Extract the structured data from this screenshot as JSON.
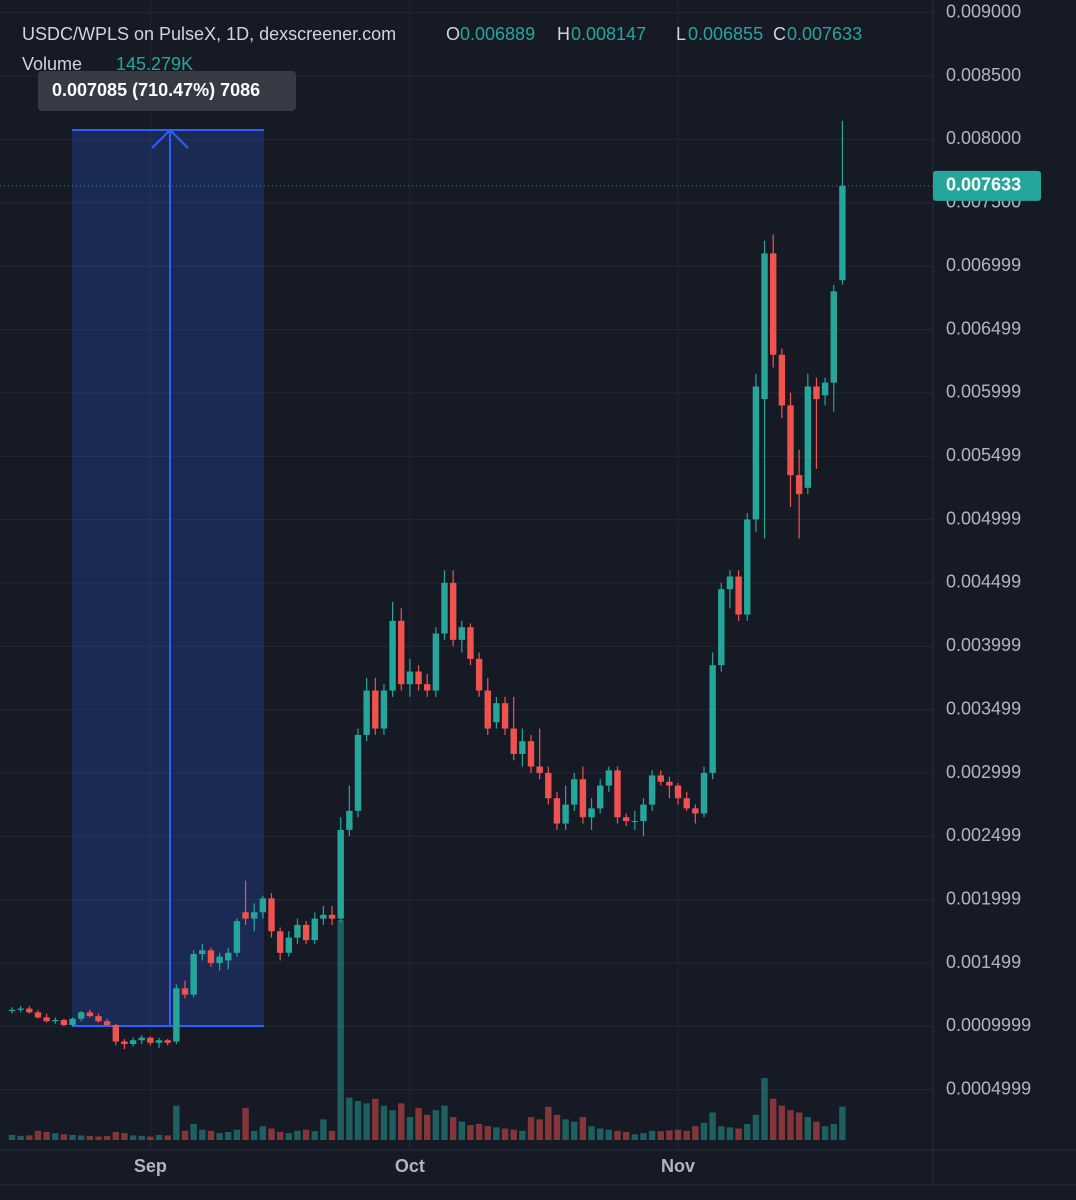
{
  "chart_data": {
    "type": "candlestick",
    "title": "USDC/WPLS on PulseX, 1D, dexscreener.com",
    "ohlc_labels": [
      "O",
      "H",
      "L",
      "C"
    ],
    "volume_label": "Volume",
    "volume_value_label": "145.279K",
    "measure_label": "0.007085 (710.47%) 7086",
    "categories": [
      null,
      null,
      null,
      null,
      null,
      null,
      null,
      null,
      null,
      null,
      null,
      null,
      null,
      null,
      null,
      null,
      "Sep",
      null,
      null,
      null,
      null,
      null,
      null,
      null,
      null,
      null,
      null,
      null,
      null,
      null,
      null,
      null,
      null,
      null,
      null,
      null,
      null,
      null,
      null,
      null,
      null,
      null,
      null,
      null,
      null,
      null,
      "Oct",
      null,
      null,
      null,
      null,
      null,
      null,
      null,
      null,
      null,
      null,
      null,
      null,
      null,
      null,
      null,
      null,
      null,
      null,
      null,
      null,
      null,
      null,
      null,
      null,
      null,
      null,
      null,
      null,
      null,
      null,
      "Nov",
      null,
      null,
      null,
      null,
      null,
      null,
      null,
      null,
      null,
      null,
      null,
      null,
      null,
      null,
      null,
      null,
      null,
      null,
      null
    ],
    "open": [
      0.00112,
      0.00113,
      0.00114,
      0.00111,
      0.00107,
      0.00104,
      0.00105,
      0.00101,
      0.00106,
      0.00111,
      0.00108,
      0.00104,
      0.00101,
      0.00088,
      0.00086,
      0.00089,
      0.00091,
      0.00087,
      0.00089,
      0.00088,
      0.0013,
      0.00125,
      0.00157,
      0.0016,
      0.0015,
      0.00152,
      0.00158,
      0.0019,
      0.00185,
      0.0019,
      0.00201,
      0.00175,
      0.00158,
      0.0017,
      0.0018,
      0.00168,
      0.00185,
      0.00188,
      0.00185,
      0.00255,
      0.0027,
      0.0033,
      0.00365,
      0.00335,
      0.00365,
      0.0042,
      0.0037,
      0.0038,
      0.0037,
      0.00365,
      0.0041,
      0.0045,
      0.00405,
      0.00415,
      0.0039,
      0.00365,
      0.0034,
      0.00355,
      0.00335,
      0.00315,
      0.00325,
      0.00305,
      0.003,
      0.0028,
      0.0026,
      0.00275,
      0.00295,
      0.00265,
      0.00272,
      0.0029,
      0.00302,
      0.00265,
      0.00262,
      0.00262,
      0.00275,
      0.00298,
      0.00293,
      0.0029,
      0.0028,
      0.00272,
      0.00268,
      0.003,
      0.00385,
      0.00445,
      0.00455,
      0.00425,
      0.005,
      0.00595,
      0.0071,
      0.0063,
      0.0059,
      0.00535,
      0.00525,
      0.00605,
      0.00598,
      0.00608,
      0.006889
    ],
    "high": [
      0.00115,
      0.00116,
      0.00116,
      0.00113,
      0.0011,
      0.00107,
      0.00106,
      0.00107,
      0.00112,
      0.00113,
      0.0011,
      0.00106,
      0.00102,
      0.0009,
      0.00091,
      0.00093,
      0.00092,
      0.00091,
      0.0009,
      0.00133,
      0.00136,
      0.0016,
      0.00165,
      0.00162,
      0.00158,
      0.00162,
      0.00185,
      0.00215,
      0.00197,
      0.00203,
      0.00205,
      0.00178,
      0.00175,
      0.00185,
      0.00183,
      0.0019,
      0.00195,
      0.00195,
      0.00265,
      0.0029,
      0.00335,
      0.00375,
      0.00375,
      0.0037,
      0.00435,
      0.0043,
      0.0039,
      0.00385,
      0.00378,
      0.00415,
      0.0046,
      0.0046,
      0.0042,
      0.00418,
      0.00395,
      0.00375,
      0.0036,
      0.0036,
      0.0036,
      0.00335,
      0.0033,
      0.00335,
      0.00305,
      0.00285,
      0.0029,
      0.003,
      0.00305,
      0.0028,
      0.00295,
      0.00305,
      0.00305,
      0.00268,
      0.0027,
      0.0028,
      0.00302,
      0.00302,
      0.00297,
      0.00292,
      0.00285,
      0.00275,
      0.00305,
      0.00395,
      0.0045,
      0.0046,
      0.0046,
      0.00505,
      0.00615,
      0.0072,
      0.00725,
      0.00635,
      0.006,
      0.00555,
      0.00615,
      0.00612,
      0.00612,
      0.00685,
      0.008147
    ],
    "low": [
      0.0011,
      0.00111,
      0.0011,
      0.00106,
      0.00103,
      0.00102,
      0.001,
      0.001,
      0.00104,
      0.00107,
      0.00103,
      0.001,
      0.00085,
      0.00082,
      0.00084,
      0.00086,
      0.00085,
      0.00083,
      0.00085,
      0.00086,
      0.00122,
      0.00123,
      0.00152,
      0.00147,
      0.00144,
      0.00145,
      0.00155,
      0.0018,
      0.00175,
      0.00185,
      0.0017,
      0.00152,
      0.00155,
      0.00165,
      0.00165,
      0.00165,
      0.0018,
      0.0018,
      0.00182,
      0.0025,
      0.00265,
      0.00325,
      0.0033,
      0.0033,
      0.0036,
      0.00365,
      0.0036,
      0.00365,
      0.0036,
      0.0036,
      0.00405,
      0.004,
      0.00395,
      0.00385,
      0.0036,
      0.0033,
      0.00335,
      0.0033,
      0.0031,
      0.00305,
      0.003,
      0.00295,
      0.00275,
      0.00255,
      0.00255,
      0.0027,
      0.0026,
      0.00255,
      0.00268,
      0.00285,
      0.0026,
      0.00258,
      0.00255,
      0.0025,
      0.0027,
      0.0029,
      0.0028,
      0.00275,
      0.0027,
      0.0026,
      0.00265,
      0.00295,
      0.0038,
      0.0043,
      0.0042,
      0.0042,
      0.0049,
      0.00485,
      0.0062,
      0.0058,
      0.0051,
      0.00485,
      0.0052,
      0.0054,
      0.0059,
      0.00585,
      0.006855
    ],
    "close": [
      0.00113,
      0.00114,
      0.00111,
      0.00107,
      0.00104,
      0.00105,
      0.00101,
      0.00106,
      0.00111,
      0.00108,
      0.00104,
      0.00101,
      0.00088,
      0.00086,
      0.00089,
      0.00091,
      0.00087,
      0.00089,
      0.00087,
      0.0013,
      0.00125,
      0.00157,
      0.0016,
      0.0015,
      0.00155,
      0.00158,
      0.00183,
      0.00185,
      0.0019,
      0.00201,
      0.00175,
      0.00158,
      0.0017,
      0.0018,
      0.00168,
      0.00185,
      0.00188,
      0.00185,
      0.00255,
      0.0027,
      0.0033,
      0.00365,
      0.00335,
      0.00365,
      0.0042,
      0.0037,
      0.0038,
      0.0037,
      0.00365,
      0.0041,
      0.0045,
      0.00405,
      0.00415,
      0.0039,
      0.00365,
      0.00335,
      0.00355,
      0.00335,
      0.00315,
      0.00325,
      0.00305,
      0.003,
      0.0028,
      0.0026,
      0.00275,
      0.00295,
      0.00265,
      0.00272,
      0.0029,
      0.00302,
      0.00265,
      0.00262,
      0.00262,
      0.00275,
      0.00298,
      0.00293,
      0.0029,
      0.0028,
      0.00272,
      0.00268,
      0.003,
      0.00385,
      0.00445,
      0.00455,
      0.00425,
      0.005,
      0.00605,
      0.0071,
      0.0063,
      0.0059,
      0.00535,
      0.0052,
      0.00605,
      0.00595,
      0.00608,
      0.0068,
      0.007633
    ],
    "volume": [
      22000,
      18000,
      20000,
      40000,
      35000,
      30000,
      25000,
      22000,
      20000,
      18000,
      15000,
      18000,
      35000,
      30000,
      20000,
      18000,
      15000,
      22000,
      20000,
      150000,
      40000,
      70000,
      45000,
      40000,
      30000,
      35000,
      45000,
      140000,
      40000,
      60000,
      50000,
      35000,
      30000,
      40000,
      45000,
      38000,
      90000,
      40000,
      960000,
      185000,
      170000,
      160000,
      180000,
      150000,
      130000,
      160000,
      100000,
      140000,
      110000,
      130000,
      150000,
      100000,
      80000,
      65000,
      70000,
      60000,
      55000,
      50000,
      45000,
      40000,
      100000,
      90000,
      145000,
      110000,
      90000,
      80000,
      100000,
      60000,
      50000,
      45000,
      40000,
      35000,
      25000,
      30000,
      40000,
      38000,
      42000,
      45000,
      40000,
      60000,
      75000,
      120000,
      60000,
      55000,
      50000,
      70000,
      110000,
      270000,
      180000,
      150000,
      130000,
      120000,
      100000,
      80000,
      60000,
      70000,
      145279
    ],
    "up_color": "#26a69a",
    "down_color": "#ef5350",
    "ylim": [
      0,
      0.0091
    ],
    "yticks": [
      {
        "value": 0.009,
        "label": "0.009000"
      },
      {
        "value": 0.0085,
        "label": "0.008500"
      },
      {
        "value": 0.008,
        "label": "0.008000"
      },
      {
        "value": 0.0075,
        "label": "0.007500"
      },
      0.006999,
      0.006499,
      0.005999,
      0.005499,
      0.004999,
      0.004499,
      0.003999,
      0.003499,
      0.002999,
      0.002499,
      0.001999,
      0.001499,
      0.0009999,
      0.0004999
    ],
    "grid": true
  }
}
